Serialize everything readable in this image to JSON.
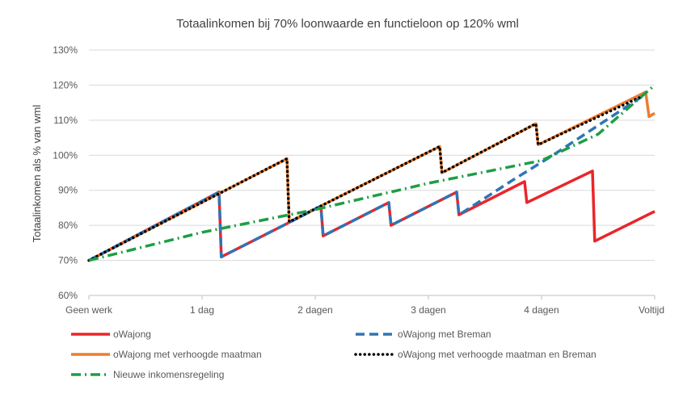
{
  "chart_data": {
    "type": "line",
    "title": "Totaalinkomen bij 70% loonwaarde en functieloon op 120% wml",
    "xlabel": "",
    "ylabel": "Totaalinkomen als % van wml",
    "categories": [
      "Geen werk",
      "1 dag",
      "2 dagen",
      "3 dagen",
      "4 dagen",
      "Voltijd"
    ],
    "xlim": [
      0,
      5
    ],
    "ylim": [
      60,
      130
    ],
    "yticks": [
      60,
      70,
      80,
      90,
      100,
      110,
      120,
      130
    ],
    "ytick_suffix": "%",
    "grid": "horizontal",
    "legend_position": "bottom",
    "series": [
      {
        "name": "oWajong",
        "color": "#e8262b",
        "style": "solid",
        "x": [
          0,
          1.15,
          1.17,
          1.75,
          2.05,
          2.07,
          2.65,
          2.67,
          3.25,
          3.27,
          3.85,
          3.87,
          4.45,
          4.47,
          5.0
        ],
        "y": [
          70,
          89.5,
          71,
          80.5,
          85.5,
          77,
          86.5,
          80,
          89.5,
          83,
          92.5,
          86.5,
          95.5,
          75.5,
          84
        ]
      },
      {
        "name": "oWajong met verhoogde maatman",
        "color": "#ed7d31",
        "style": "solid",
        "x": [
          0,
          1.75,
          1.77,
          3.1,
          3.12,
          3.95,
          3.97,
          4.92,
          4.95,
          5.0
        ],
        "y": [
          70,
          99,
          81,
          102.5,
          95,
          109,
          103,
          118,
          111,
          112
        ]
      },
      {
        "name": "oWajong met Breman",
        "color": "#2e75b6",
        "style": "dash",
        "x": [
          0,
          1.15,
          1.17,
          1.75,
          2.05,
          2.07,
          2.65,
          2.67,
          3.25,
          3.27,
          3.75,
          4.1,
          4.9
        ],
        "y": [
          70,
          89.5,
          71,
          80.5,
          85.5,
          77,
          86.5,
          80,
          89.5,
          83,
          93,
          100,
          117
        ]
      },
      {
        "name": "oWajong met verhoogde maatman en Breman",
        "color": "#000000",
        "style": "dot",
        "x": [
          0,
          1.75,
          1.77,
          3.1,
          3.12,
          3.95,
          3.97,
          4.9
        ],
        "y": [
          70,
          99,
          81,
          102.5,
          95,
          109,
          103,
          117
        ]
      },
      {
        "name": "Nieuwe inkomensregeling",
        "color": "#1e9e45",
        "style": "dashdot",
        "x": [
          0,
          1,
          2,
          3,
          4,
          4.5,
          5
        ],
        "y": [
          70,
          78,
          84.5,
          92,
          98.5,
          106,
          120
        ]
      }
    ],
    "legend_order": [
      0,
      2,
      1,
      3,
      4
    ]
  }
}
